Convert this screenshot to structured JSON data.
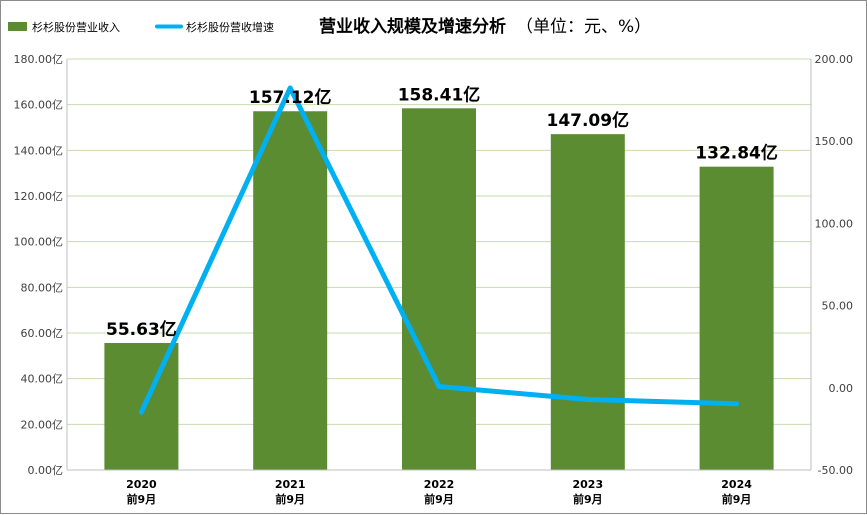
{
  "chart_data": {
    "type": "bar",
    "title": "营业收入规模及增速分析",
    "title_unit": "（单位：元、%）",
    "categories": [
      {
        "line1": "2020",
        "line2": "前9月"
      },
      {
        "line1": "2021",
        "line2": "前9月"
      },
      {
        "line1": "2022",
        "line2": "前9月"
      },
      {
        "line1": "2023",
        "line2": "前9月"
      },
      {
        "line1": "2024",
        "line2": "前9月"
      }
    ],
    "series": [
      {
        "name": "杉杉股份营业收入",
        "kind": "bar",
        "axis": "left",
        "color": "#5b8c32",
        "values": [
          55.63,
          157.12,
          158.41,
          147.09,
          132.84
        ],
        "data_labels": [
          "55.63亿",
          "157.12亿",
          "158.41亿",
          "147.09亿",
          "132.84亿"
        ]
      },
      {
        "name": "杉杉股份营收增速",
        "kind": "line",
        "axis": "right",
        "color": "#00b0f0",
        "values": [
          -14.8,
          182.4,
          0.8,
          -7.1,
          -9.7
        ]
      }
    ],
    "left_axis": {
      "ylim": [
        0,
        180
      ],
      "ticks": [
        0,
        20,
        40,
        60,
        80,
        100,
        120,
        140,
        160,
        180
      ],
      "tick_labels": [
        "0.00亿",
        "20.00亿",
        "40.00亿",
        "60.00亿",
        "80.00亿",
        "100.00亿",
        "120.00亿",
        "140.00亿",
        "160.00亿",
        "180.00亿"
      ]
    },
    "right_axis": {
      "ylim": [
        -50,
        200
      ],
      "ticks": [
        -50,
        0,
        50,
        100,
        150,
        200
      ],
      "tick_labels": [
        "-50.00",
        "0.00",
        "50.00",
        "100.00",
        "150.00",
        "200.00"
      ]
    },
    "grid": true,
    "legend_position": "top-left"
  }
}
